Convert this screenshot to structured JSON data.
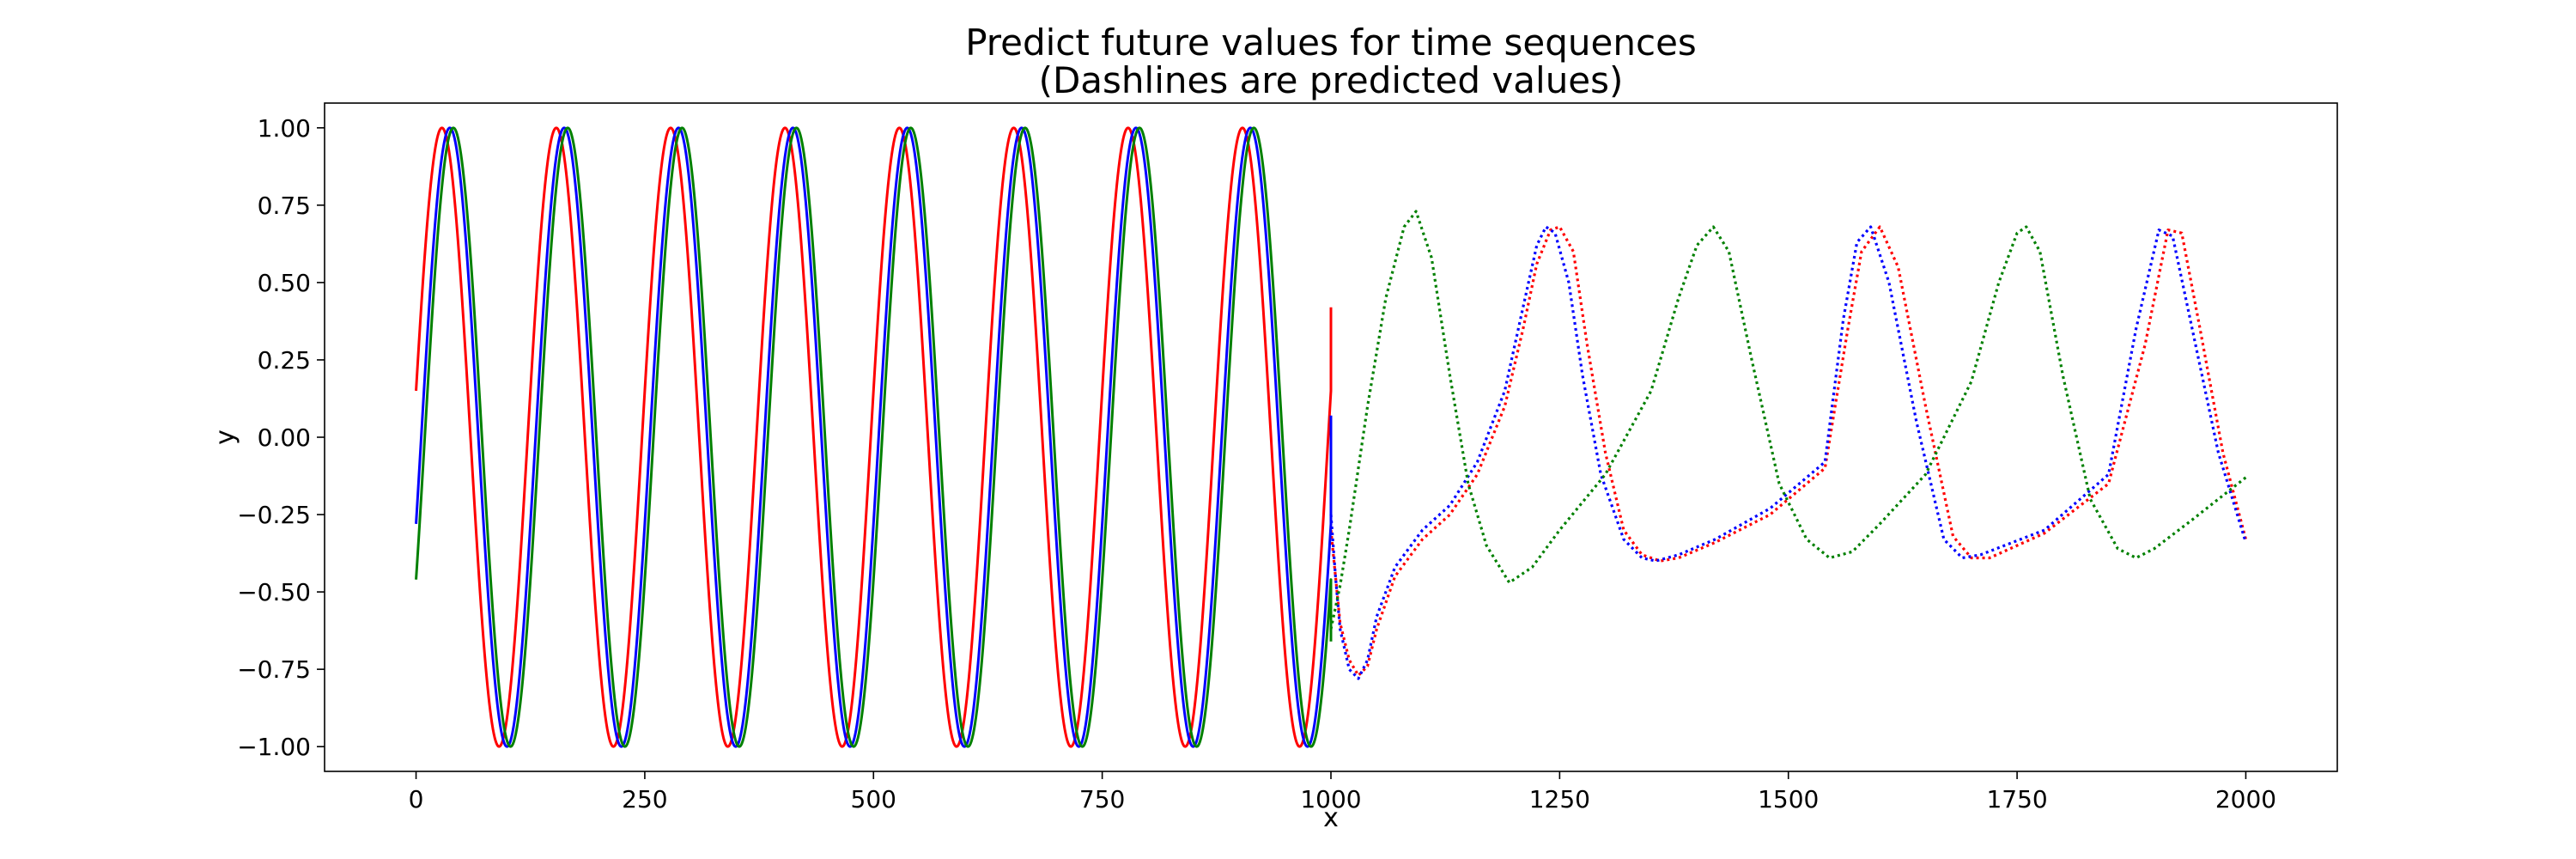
{
  "chart_data": {
    "type": "line",
    "title": "Predict future values for time sequences\n(Dashlines are predicted values)",
    "title_lines": [
      "Predict future values for time sequences",
      "(Dashlines are predicted values)"
    ],
    "xlabel": "x",
    "ylabel": "y",
    "xlim": [
      -100,
      2100
    ],
    "ylim": [
      -1.08,
      1.08
    ],
    "xticks": [
      0,
      250,
      500,
      750,
      1000,
      1250,
      1500,
      1750,
      2000
    ],
    "xtick_labels": [
      "0",
      "250",
      "500",
      "750",
      "1000",
      "1250",
      "1500",
      "1750",
      "2000"
    ],
    "yticks": [
      -1.0,
      -0.75,
      -0.5,
      -0.25,
      0.0,
      0.25,
      0.5,
      0.75,
      1.0
    ],
    "ytick_labels": [
      "−1.00",
      "−0.75",
      "−0.50",
      "−0.25",
      "0.00",
      "0.25",
      "0.50",
      "0.75",
      "1.00"
    ],
    "grid": false,
    "legend": "none",
    "observed_range": [
      0,
      1000
    ],
    "predicted_range": [
      1000,
      2000
    ],
    "series": [
      {
        "color": "#ff0000",
        "style_observed": "solid",
        "style_predicted": "dotted",
        "observed": {
          "x_start": 0,
          "x_end": 1000,
          "period": 125,
          "amplitude": 1.0,
          "y_at_start": 0.15,
          "y_at_end": 0.42
        },
        "predicted": {
          "x": [
            1000,
            1005,
            1010,
            1020,
            1030,
            1040,
            1050,
            1070,
            1100,
            1130,
            1160,
            1190,
            1210,
            1225,
            1240,
            1250,
            1265,
            1280,
            1300,
            1320,
            1340,
            1360,
            1380,
            1420,
            1480,
            1540,
            1565,
            1580,
            1600,
            1620,
            1650,
            1680,
            1700,
            1720,
            1780,
            1850,
            1890,
            1915,
            1930,
            1950,
            1975,
            2000
          ],
          "y": [
            -0.3,
            -0.45,
            -0.6,
            -0.72,
            -0.77,
            -0.74,
            -0.62,
            -0.45,
            -0.33,
            -0.25,
            -0.12,
            0.1,
            0.35,
            0.56,
            0.67,
            0.68,
            0.6,
            0.3,
            -0.05,
            -0.3,
            -0.38,
            -0.4,
            -0.39,
            -0.34,
            -0.25,
            -0.1,
            0.35,
            0.6,
            0.68,
            0.55,
            0.1,
            -0.32,
            -0.39,
            -0.39,
            -0.31,
            -0.15,
            0.3,
            0.67,
            0.66,
            0.35,
            -0.05,
            -0.33
          ]
        }
      },
      {
        "color": "#0000ff",
        "style_observed": "solid",
        "style_predicted": "dotted",
        "observed": {
          "x_start": 0,
          "x_end": 1000,
          "period": 125,
          "amplitude": 1.0,
          "y_at_start": -0.28,
          "y_at_end": 0.07
        },
        "predicted": {
          "x": [
            1000,
            1005,
            1010,
            1020,
            1030,
            1040,
            1050,
            1070,
            1100,
            1130,
            1160,
            1190,
            1210,
            1225,
            1235,
            1245,
            1260,
            1275,
            1295,
            1320,
            1340,
            1355,
            1380,
            1420,
            1480,
            1540,
            1560,
            1575,
            1590,
            1610,
            1640,
            1670,
            1690,
            1710,
            1780,
            1850,
            1880,
            1905,
            1920,
            1945,
            1970,
            2000
          ],
          "y": [
            -0.25,
            -0.45,
            -0.62,
            -0.75,
            -0.78,
            -0.72,
            -0.58,
            -0.42,
            -0.3,
            -0.22,
            -0.08,
            0.15,
            0.42,
            0.62,
            0.68,
            0.66,
            0.5,
            0.2,
            -0.12,
            -0.33,
            -0.39,
            -0.4,
            -0.38,
            -0.33,
            -0.23,
            -0.08,
            0.38,
            0.63,
            0.68,
            0.5,
            0.05,
            -0.33,
            -0.39,
            -0.38,
            -0.3,
            -0.12,
            0.35,
            0.67,
            0.65,
            0.3,
            -0.05,
            -0.34
          ]
        }
      },
      {
        "color": "#008000",
        "style_observed": "solid",
        "style_predicted": "dotted",
        "observed": {
          "x_start": 0,
          "x_end": 1000,
          "period": 125,
          "amplitude": 1.0,
          "y_at_start": -0.46,
          "y_at_end": -0.66
        },
        "predicted": {
          "x": [
            1000,
            1010,
            1020,
            1040,
            1060,
            1080,
            1093,
            1110,
            1130,
            1150,
            1170,
            1195,
            1220,
            1250,
            1300,
            1350,
            1380,
            1400,
            1418,
            1435,
            1460,
            1490,
            1520,
            1545,
            1570,
            1600,
            1650,
            1700,
            1730,
            1750,
            1760,
            1775,
            1800,
            1830,
            1860,
            1880,
            1900,
            1940,
            1970,
            2000
          ],
          "y": [
            -0.62,
            -0.48,
            -0.3,
            0.1,
            0.45,
            0.68,
            0.73,
            0.58,
            0.2,
            -0.15,
            -0.35,
            -0.47,
            -0.42,
            -0.3,
            -0.12,
            0.15,
            0.45,
            0.62,
            0.68,
            0.6,
            0.25,
            -0.15,
            -0.33,
            -0.39,
            -0.37,
            -0.28,
            -0.12,
            0.18,
            0.5,
            0.66,
            0.68,
            0.6,
            0.2,
            -0.2,
            -0.36,
            -0.39,
            -0.36,
            -0.27,
            -0.2,
            -0.13
          ]
        }
      }
    ]
  }
}
